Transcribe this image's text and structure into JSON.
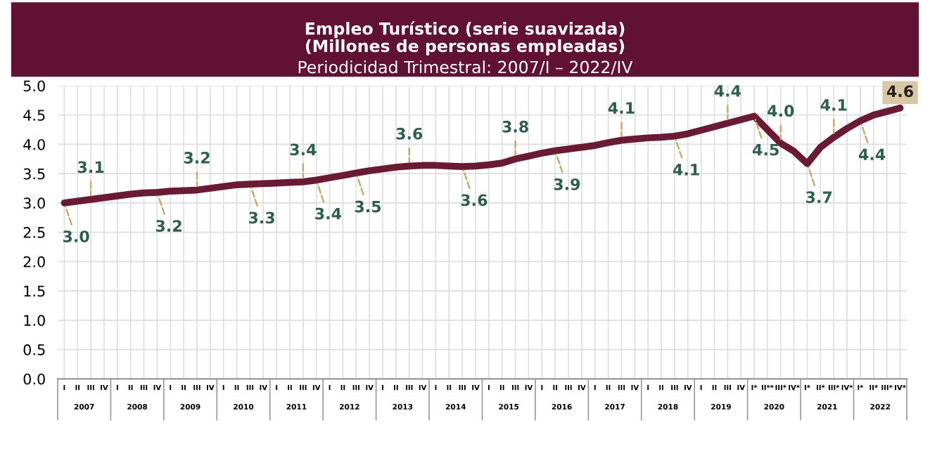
{
  "chart_data": {
    "type": "line",
    "title": "Empleo Turístico (serie suavizada)\n(Millones de personas empleadas)",
    "subtitle": "Periodicidad Trimestral: 2007/I – 2022/IV",
    "categories": [
      "I",
      "II",
      "III",
      "IV",
      "I",
      "II",
      "III",
      "IV",
      "I",
      "II",
      "III",
      "IV",
      "I",
      "II",
      "III",
      "IV",
      "I",
      "II",
      "III",
      "IV",
      "I",
      "II",
      "III",
      "IV",
      "I",
      "II",
      "III",
      "IV",
      "I",
      "II",
      "III",
      "IV",
      "I",
      "II",
      "III",
      "IV",
      "I",
      "II",
      "III",
      "IV",
      "I",
      "II",
      "III",
      "IV",
      "I",
      "II",
      "III",
      "IV",
      "I",
      "II",
      "III",
      "IV",
      "I*",
      "II**",
      "III*",
      "IV*",
      "I*",
      "II*",
      "III*",
      "IV*",
      "I*",
      "II*",
      "III*",
      "IV*"
    ],
    "annotations": [
      "2007",
      "2008",
      "2009",
      "2010",
      "2011",
      "2012",
      "2013",
      "2014",
      "2015",
      "2016",
      "2017",
      "2018",
      "2019",
      "2020",
      "2021",
      "2022"
    ],
    "series": [
      {
        "color": "#6b1a33",
        "values": [
          3.0,
          3.03,
          3.06,
          3.09,
          3.12,
          3.15,
          3.17,
          3.18,
          3.2,
          3.21,
          3.22,
          3.25,
          3.28,
          3.31,
          3.32,
          3.33,
          3.34,
          3.35,
          3.36,
          3.39,
          3.43,
          3.47,
          3.51,
          3.55,
          3.58,
          3.61,
          3.63,
          3.64,
          3.64,
          3.63,
          3.62,
          3.63,
          3.65,
          3.68,
          3.75,
          3.8,
          3.85,
          3.89,
          3.92,
          3.95,
          3.98,
          4.03,
          4.07,
          4.09,
          4.11,
          4.12,
          4.14,
          4.18,
          4.24,
          4.3,
          4.36,
          4.42,
          4.48,
          4.25,
          4.02,
          3.88,
          3.67,
          3.95,
          4.12,
          4.27,
          4.4,
          4.5,
          4.56,
          4.62
        ],
        "value_labels": [
          "3.0",
          null,
          "3.1",
          null,
          null,
          null,
          null,
          "3.2",
          null,
          null,
          "3.2",
          null,
          null,
          null,
          "3.3",
          null,
          null,
          null,
          "3.4",
          "3.4",
          null,
          null,
          "3.5",
          null,
          null,
          null,
          "3.6",
          null,
          null,
          null,
          "3.6",
          null,
          null,
          null,
          "3.8",
          null,
          null,
          "3.9",
          null,
          null,
          null,
          null,
          "4.1",
          null,
          null,
          null,
          "4.1",
          null,
          null,
          null,
          "4.4",
          null,
          "4.5",
          null,
          "4.0",
          null,
          "3.7",
          null,
          "4.1",
          null,
          "4.4",
          null,
          null,
          "4.6"
        ]
      }
    ],
    "ylim": [
      0.0,
      5.0
    ],
    "yticks": [
      {
        "value": 0,
        "label": "0.0"
      },
      {
        "value": 0.5,
        "label": "0.5"
      },
      {
        "value": 1,
        "label": "1.0"
      },
      {
        "value": 1.5,
        "label": "1.5"
      },
      {
        "value": 2,
        "label": "2.0"
      },
      {
        "value": 2.5,
        "label": "2.5"
      },
      {
        "value": 3,
        "label": "3.0"
      },
      {
        "value": 3.5,
        "label": "3.5"
      },
      {
        "value": 4,
        "label": "4.0"
      },
      {
        "value": 4.5,
        "label": "4.5"
      },
      {
        "value": 5,
        "label": "5.0"
      }
    ],
    "grid": true,
    "marker": "none",
    "line_style": "solid"
  }
}
